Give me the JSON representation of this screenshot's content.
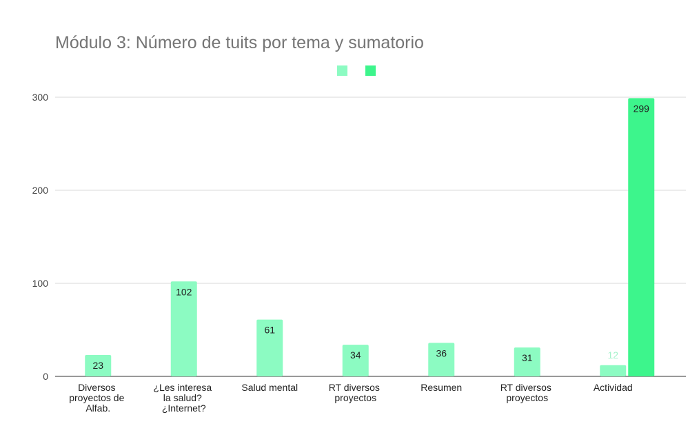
{
  "chart_data": {
    "type": "bar",
    "title": "Módulo 3: Número de tuits por tema y sumatorio",
    "categories": [
      "Diversos proyectos de Alfab.",
      "¿Les interesa la salud? ¿Internet?",
      "Salud mental",
      "RT diversos proyectos",
      "Resumen",
      "RT diversos proyectos",
      "Actividad"
    ],
    "series": [
      {
        "color": "#8cfbc2",
        "values": [
          23,
          102,
          61,
          34,
          36,
          31,
          12
        ]
      },
      {
        "color": "#3df58c",
        "values": [
          null,
          null,
          null,
          null,
          null,
          null,
          299
        ]
      }
    ],
    "ylim": [
      0,
      300
    ],
    "yticks": [
      0,
      100,
      200,
      300
    ],
    "grid": true,
    "legend": "top"
  }
}
